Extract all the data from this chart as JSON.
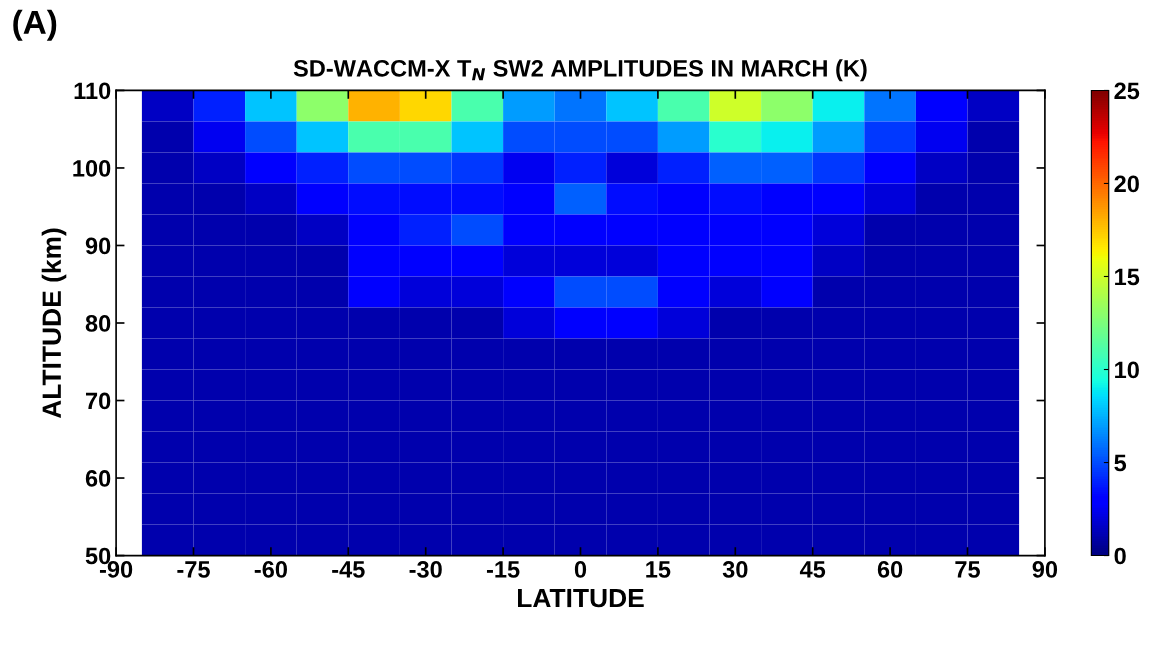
{
  "chart_data": {
    "type": "heatmap",
    "title": "SD-WACCM-X T$_{N}$ SW2 AMPLITUDES IN MARCH (K)",
    "xlabel": "LATITUDE",
    "ylabel": "ALTITUDE (km)",
    "annotations": [
      "(A)"
    ],
    "x": [
      -80,
      -70,
      -60,
      -50,
      -40,
      -30,
      -20,
      -10,
      0,
      10,
      20,
      30,
      40,
      50,
      60,
      70,
      80
    ],
    "y": [
      108,
      104,
      100,
      96,
      92,
      88,
      84,
      80,
      76,
      72,
      68,
      64,
      60,
      56,
      52
    ],
    "cells": [
      [
        1.5,
        4,
        8,
        13,
        18,
        17,
        11,
        7,
        6,
        8,
        11,
        15,
        13,
        9,
        6,
        3,
        1.5
      ],
      [
        1,
        2.5,
        5,
        8,
        11,
        11,
        8,
        5,
        5,
        5,
        7,
        10,
        9,
        7,
        4.5,
        2.5,
        1
      ],
      [
        1,
        1.5,
        3,
        4,
        5,
        5,
        4.5,
        2.5,
        4,
        2,
        4,
        5.5,
        5.5,
        4.5,
        3,
        1.5,
        1
      ],
      [
        1,
        1,
        1.5,
        3,
        3.5,
        3.5,
        3.5,
        3,
        5.5,
        3.5,
        3,
        3.5,
        3,
        3,
        2,
        1,
        1
      ],
      [
        1,
        1,
        1,
        1.5,
        3,
        4,
        5,
        3,
        3,
        3,
        3,
        3,
        3,
        2,
        1,
        1,
        1
      ],
      [
        1,
        1,
        1,
        1,
        3,
        3,
        3,
        2,
        2,
        2,
        3,
        3,
        3,
        1.5,
        1,
        1,
        1
      ],
      [
        1,
        1,
        1,
        1,
        3,
        2,
        2,
        3,
        5,
        5,
        3,
        2,
        3,
        1,
        1,
        1,
        1
      ],
      [
        1,
        1,
        1,
        1,
        1,
        1,
        1,
        2,
        3,
        3,
        2,
        1,
        1,
        1,
        1,
        1,
        1
      ],
      [
        1,
        1,
        1,
        1,
        1,
        1,
        1,
        1,
        1,
        1,
        1,
        1,
        1,
        1,
        1,
        1,
        1
      ],
      [
        1,
        1,
        1,
        1,
        1,
        1,
        1,
        1,
        1,
        1,
        1,
        1,
        1,
        1,
        1,
        1,
        1
      ],
      [
        1,
        1,
        1,
        1,
        1,
        1,
        1,
        1,
        1,
        1,
        1,
        1,
        1,
        1,
        1,
        1,
        1
      ],
      [
        1,
        1,
        1,
        1,
        1,
        1,
        1,
        1,
        1,
        1,
        1,
        1,
        1,
        1,
        1,
        1,
        1
      ],
      [
        1,
        1,
        1,
        1,
        1,
        1,
        1,
        1,
        1,
        1,
        1,
        1,
        1,
        1,
        1,
        1,
        1
      ],
      [
        1,
        1,
        1,
        1,
        1,
        1,
        1,
        1,
        1,
        1,
        1,
        1,
        1,
        1,
        1,
        1,
        1
      ],
      [
        1,
        1,
        1,
        1,
        1,
        1,
        1,
        1,
        1,
        1,
        1,
        1,
        1,
        1,
        1,
        1,
        1
      ]
    ],
    "xlim": [
      -90,
      90
    ],
    "xticks": [
      -90,
      -75,
      -60,
      -45,
      -30,
      -15,
      0,
      15,
      30,
      45,
      60,
      75,
      90
    ],
    "ylim": [
      50,
      110
    ],
    "yticks": [
      50,
      60,
      70,
      80,
      90,
      100,
      110
    ],
    "clim": [
      0,
      25
    ],
    "cticks": [
      0,
      5,
      10,
      15,
      20,
      25
    ],
    "grid": false
  }
}
